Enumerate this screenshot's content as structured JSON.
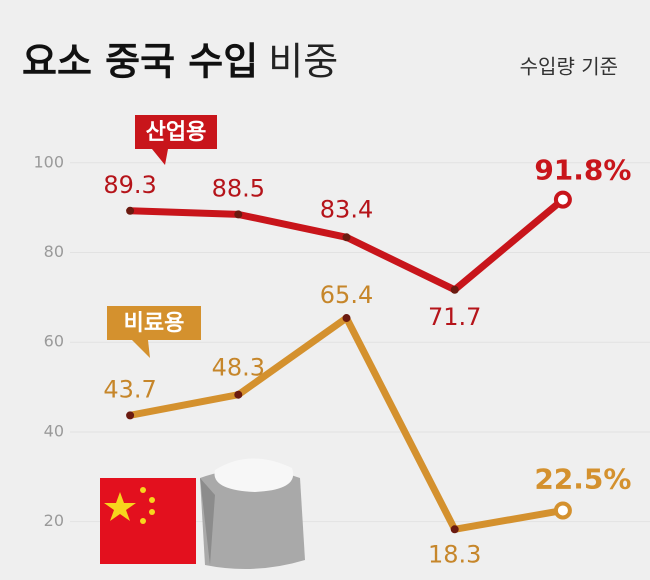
{
  "chart_data": {
    "type": "line",
    "title": "요소 중국 수입",
    "title_light": "비중",
    "subtitle": "수입량 기준",
    "categories": [
      null,
      null,
      null,
      null,
      null
    ],
    "series": [
      {
        "name": "산업용",
        "color": "#c8151b",
        "values": [
          89.3,
          88.5,
          83.4,
          71.7,
          91.8
        ],
        "value_labels": [
          "89.3",
          "88.5",
          "83.4",
          "71.7",
          "91.8%"
        ]
      },
      {
        "name": "비료용",
        "color": "#d4912e",
        "values": [
          43.7,
          48.3,
          65.4,
          18.3,
          22.5
        ],
        "value_labels": [
          "43.7",
          "48.3",
          "65.4",
          "18.3",
          "22.5%"
        ]
      }
    ],
    "ylim": [
      7,
      114
    ],
    "yticks": [
      20,
      40,
      60,
      80,
      100
    ],
    "grid": true
  }
}
